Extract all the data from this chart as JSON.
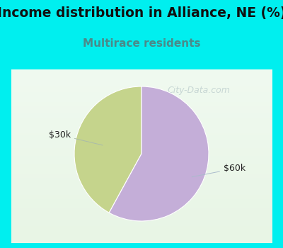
{
  "title": "Income distribution in Alliance, NE (%)",
  "subtitle": "Multirace residents",
  "title_fontsize": 13.5,
  "subtitle_fontsize": 11,
  "title_color": "#111111",
  "subtitle_color": "#4a8a8a",
  "background_color": "#00efef",
  "chart_bg_top": "#e8f5e8",
  "chart_bg_bottom": "#f5fff5",
  "slices": [
    0.42,
    0.58
  ],
  "slice_colors": [
    "#c5d48c",
    "#c4aed8"
  ],
  "labels": [
    "$30k",
    "$60k"
  ],
  "watermark": "City-Data.com",
  "start_angle": 90,
  "label_font_size": 9
}
